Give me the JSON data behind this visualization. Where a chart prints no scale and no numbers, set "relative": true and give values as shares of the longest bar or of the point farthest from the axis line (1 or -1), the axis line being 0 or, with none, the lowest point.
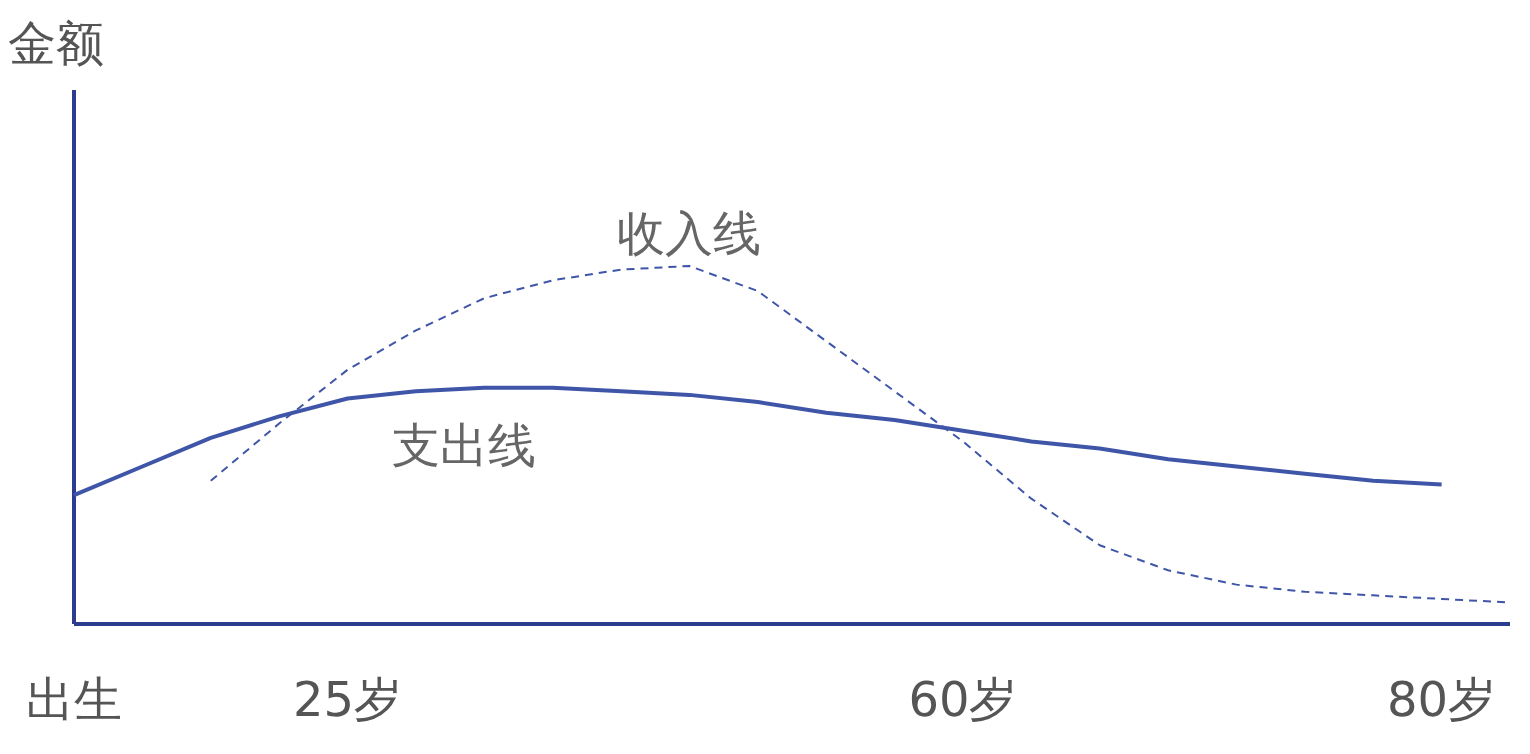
{
  "chart_data": {
    "type": "line",
    "relative": true,
    "ylabel": "金额",
    "grid": false,
    "legend": false,
    "categories": [
      "出生",
      null,
      null,
      null,
      "25岁",
      null,
      null,
      null,
      null,
      null,
      null,
      null,
      null,
      "60岁",
      null,
      null,
      null,
      null,
      null,
      null,
      "80岁",
      null
    ],
    "series": [
      {
        "name": "收入线",
        "color": "#3f56a8",
        "line_style": "dashed",
        "values": [
          null,
          null,
          0.4,
          0.56,
          0.71,
          0.82,
          0.91,
          0.96,
          0.99,
          1.0,
          0.93,
          0.79,
          0.65,
          0.51,
          0.35,
          0.22,
          0.15,
          0.11,
          0.09,
          0.08,
          0.07,
          0.06
        ]
      },
      {
        "name": "支出线",
        "color": "#3f56a8",
        "line_style": "solid",
        "values": [
          0.36,
          0.44,
          0.52,
          0.58,
          0.63,
          0.65,
          0.66,
          0.66,
          0.65,
          0.64,
          0.62,
          0.59,
          0.57,
          0.54,
          0.51,
          0.49,
          0.46,
          0.44,
          0.42,
          0.4,
          0.39,
          null
        ]
      }
    ]
  }
}
